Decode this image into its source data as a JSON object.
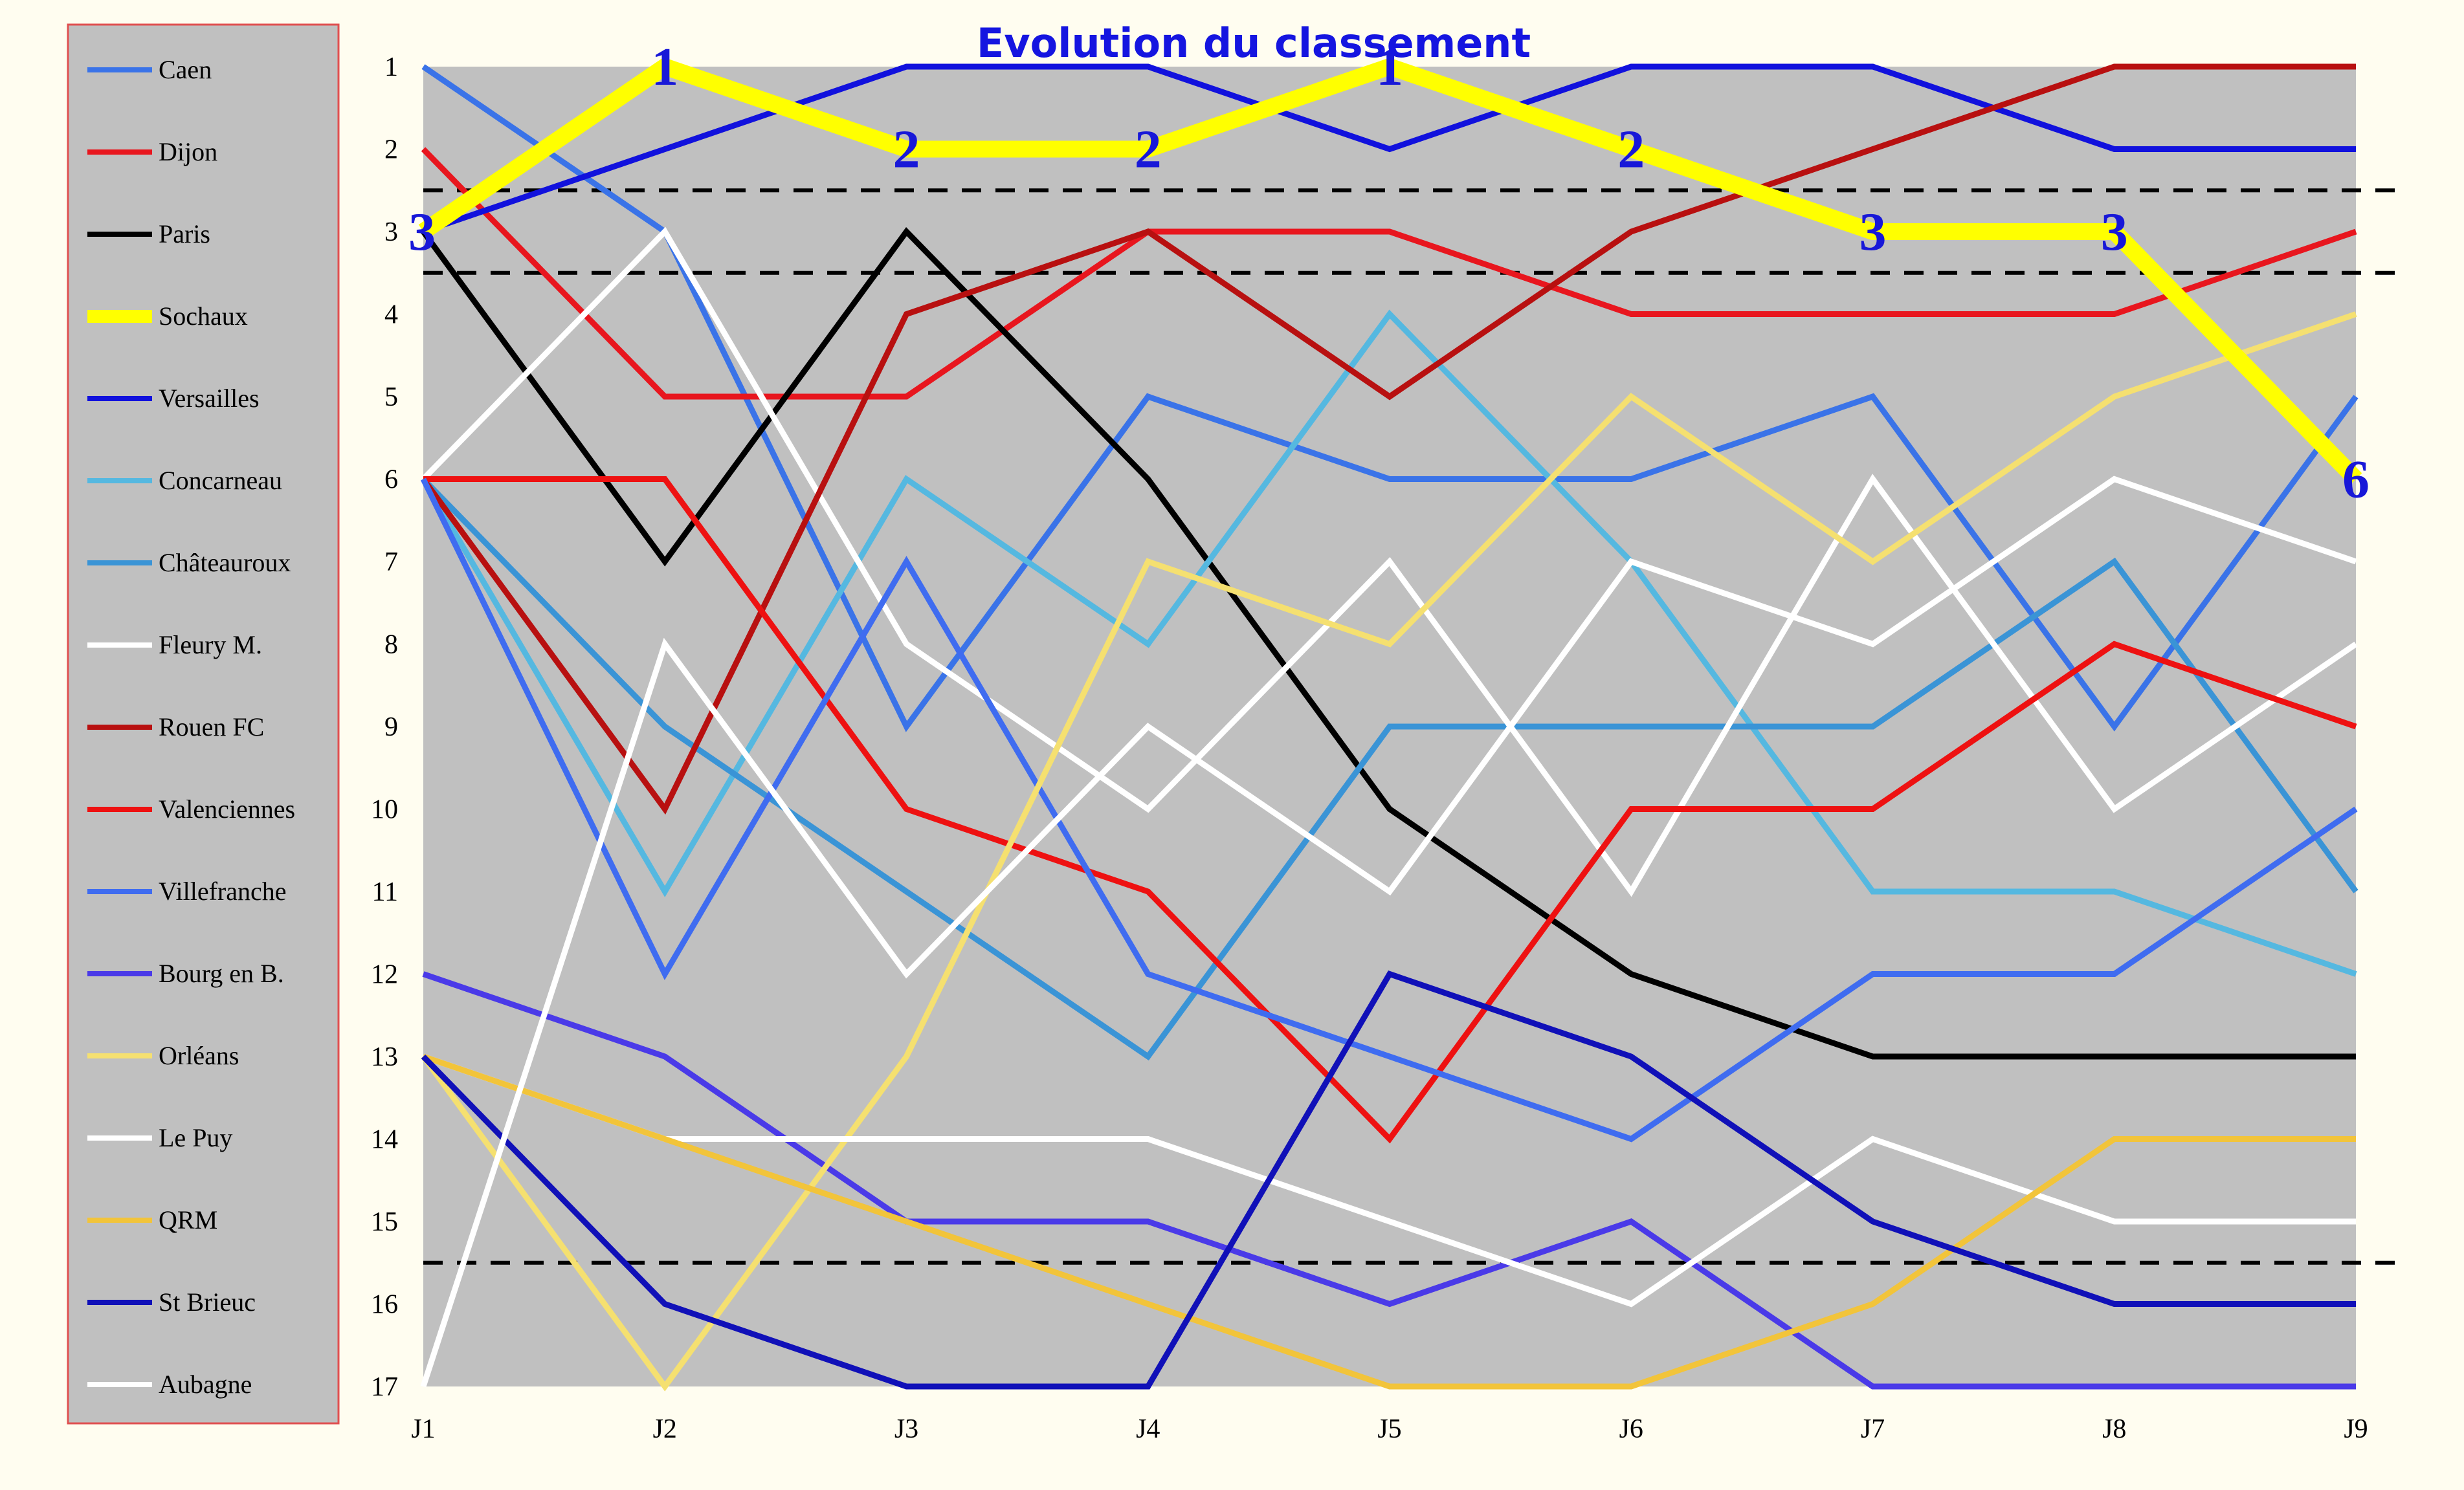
{
  "chart_data": {
    "type": "line",
    "title": "Evolution du classement",
    "xlabel": "",
    "ylabel": "",
    "x": [
      "J1",
      "J2",
      "J3",
      "J4",
      "J5",
      "J6",
      "J7",
      "J8",
      "J9"
    ],
    "y_ticks": [
      "1",
      "2",
      "3",
      "4",
      "5",
      "6",
      "7",
      "8",
      "9",
      "10",
      "11",
      "12",
      "13",
      "14",
      "15",
      "16",
      "17"
    ],
    "ylim": [
      1,
      17
    ],
    "y_inverted": true,
    "grid": false,
    "legend_position": "left",
    "background_color": "#c0c0c0",
    "reference_lines": [
      2.5,
      3.5,
      15.5
    ],
    "series": [
      {
        "name": "Caen",
        "color": "#3a73e8",
        "values": [
          1,
          3,
          9,
          5,
          6,
          6,
          5,
          9,
          5
        ]
      },
      {
        "name": "Dijon",
        "color": "#e8161e",
        "values": [
          2,
          5,
          5,
          3,
          3,
          4,
          4,
          4,
          3
        ]
      },
      {
        "name": "Paris",
        "color": "#000000",
        "values": [
          3,
          7,
          3,
          6,
          10,
          12,
          13,
          13,
          13
        ]
      },
      {
        "name": "Sochaux",
        "color": "#ffff00",
        "values": [
          3,
          1,
          2,
          2,
          1,
          2,
          3,
          3,
          6
        ],
        "point_labels": [
          "3",
          "1",
          "2",
          "2",
          "1",
          "2",
          "3",
          "3",
          "6"
        ]
      },
      {
        "name": "Versailles",
        "color": "#1111dd",
        "values": [
          3,
          2,
          1,
          1,
          2,
          1,
          1,
          2,
          2
        ]
      },
      {
        "name": "Concarneau",
        "color": "#55b8e0",
        "values": [
          6,
          11,
          6,
          8,
          4,
          7,
          11,
          11,
          12
        ]
      },
      {
        "name": "Châteauroux",
        "color": "#3a94d6",
        "values": [
          6,
          9,
          11,
          13,
          9,
          9,
          9,
          7,
          11
        ]
      },
      {
        "name": "Fleury M.",
        "color": "#ffffff",
        "values": [
          6,
          3,
          8,
          10,
          7,
          11,
          6,
          10,
          8
        ]
      },
      {
        "name": "Rouen FC",
        "color": "#b81010",
        "values": [
          6,
          10,
          4,
          3,
          5,
          3,
          2,
          1,
          1
        ]
      },
      {
        "name": "Valenciennes",
        "color": "#ee1111",
        "values": [
          6,
          6,
          10,
          11,
          14,
          10,
          10,
          8,
          9
        ]
      },
      {
        "name": "Villefranche",
        "color": "#3f6cf0",
        "values": [
          6,
          12,
          7,
          12,
          13,
          14,
          12,
          12,
          10
        ]
      },
      {
        "name": "Bourg en B.",
        "color": "#4a3ae8",
        "values": [
          12,
          13,
          15,
          15,
          16,
          15,
          17,
          17,
          17
        ]
      },
      {
        "name": "Orléans",
        "color": "#f5e070",
        "values": [
          13,
          17,
          13,
          7,
          8,
          5,
          7,
          5,
          4
        ]
      },
      {
        "name": "Le Puy",
        "color": "#ffffff",
        "values": [
          13,
          14,
          14,
          14,
          15,
          16,
          14,
          15,
          15
        ]
      },
      {
        "name": "QRM",
        "color": "#f2c43a",
        "values": [
          13,
          14,
          15,
          16,
          17,
          17,
          16,
          14,
          14
        ]
      },
      {
        "name": "St Brieuc",
        "color": "#1010b8",
        "values": [
          13,
          16,
          17,
          17,
          12,
          13,
          15,
          16,
          16
        ]
      },
      {
        "name": "Aubagne",
        "color": "#ffffff",
        "values": [
          17,
          8,
          12,
          9,
          11,
          7,
          8,
          6,
          7
        ]
      }
    ]
  }
}
